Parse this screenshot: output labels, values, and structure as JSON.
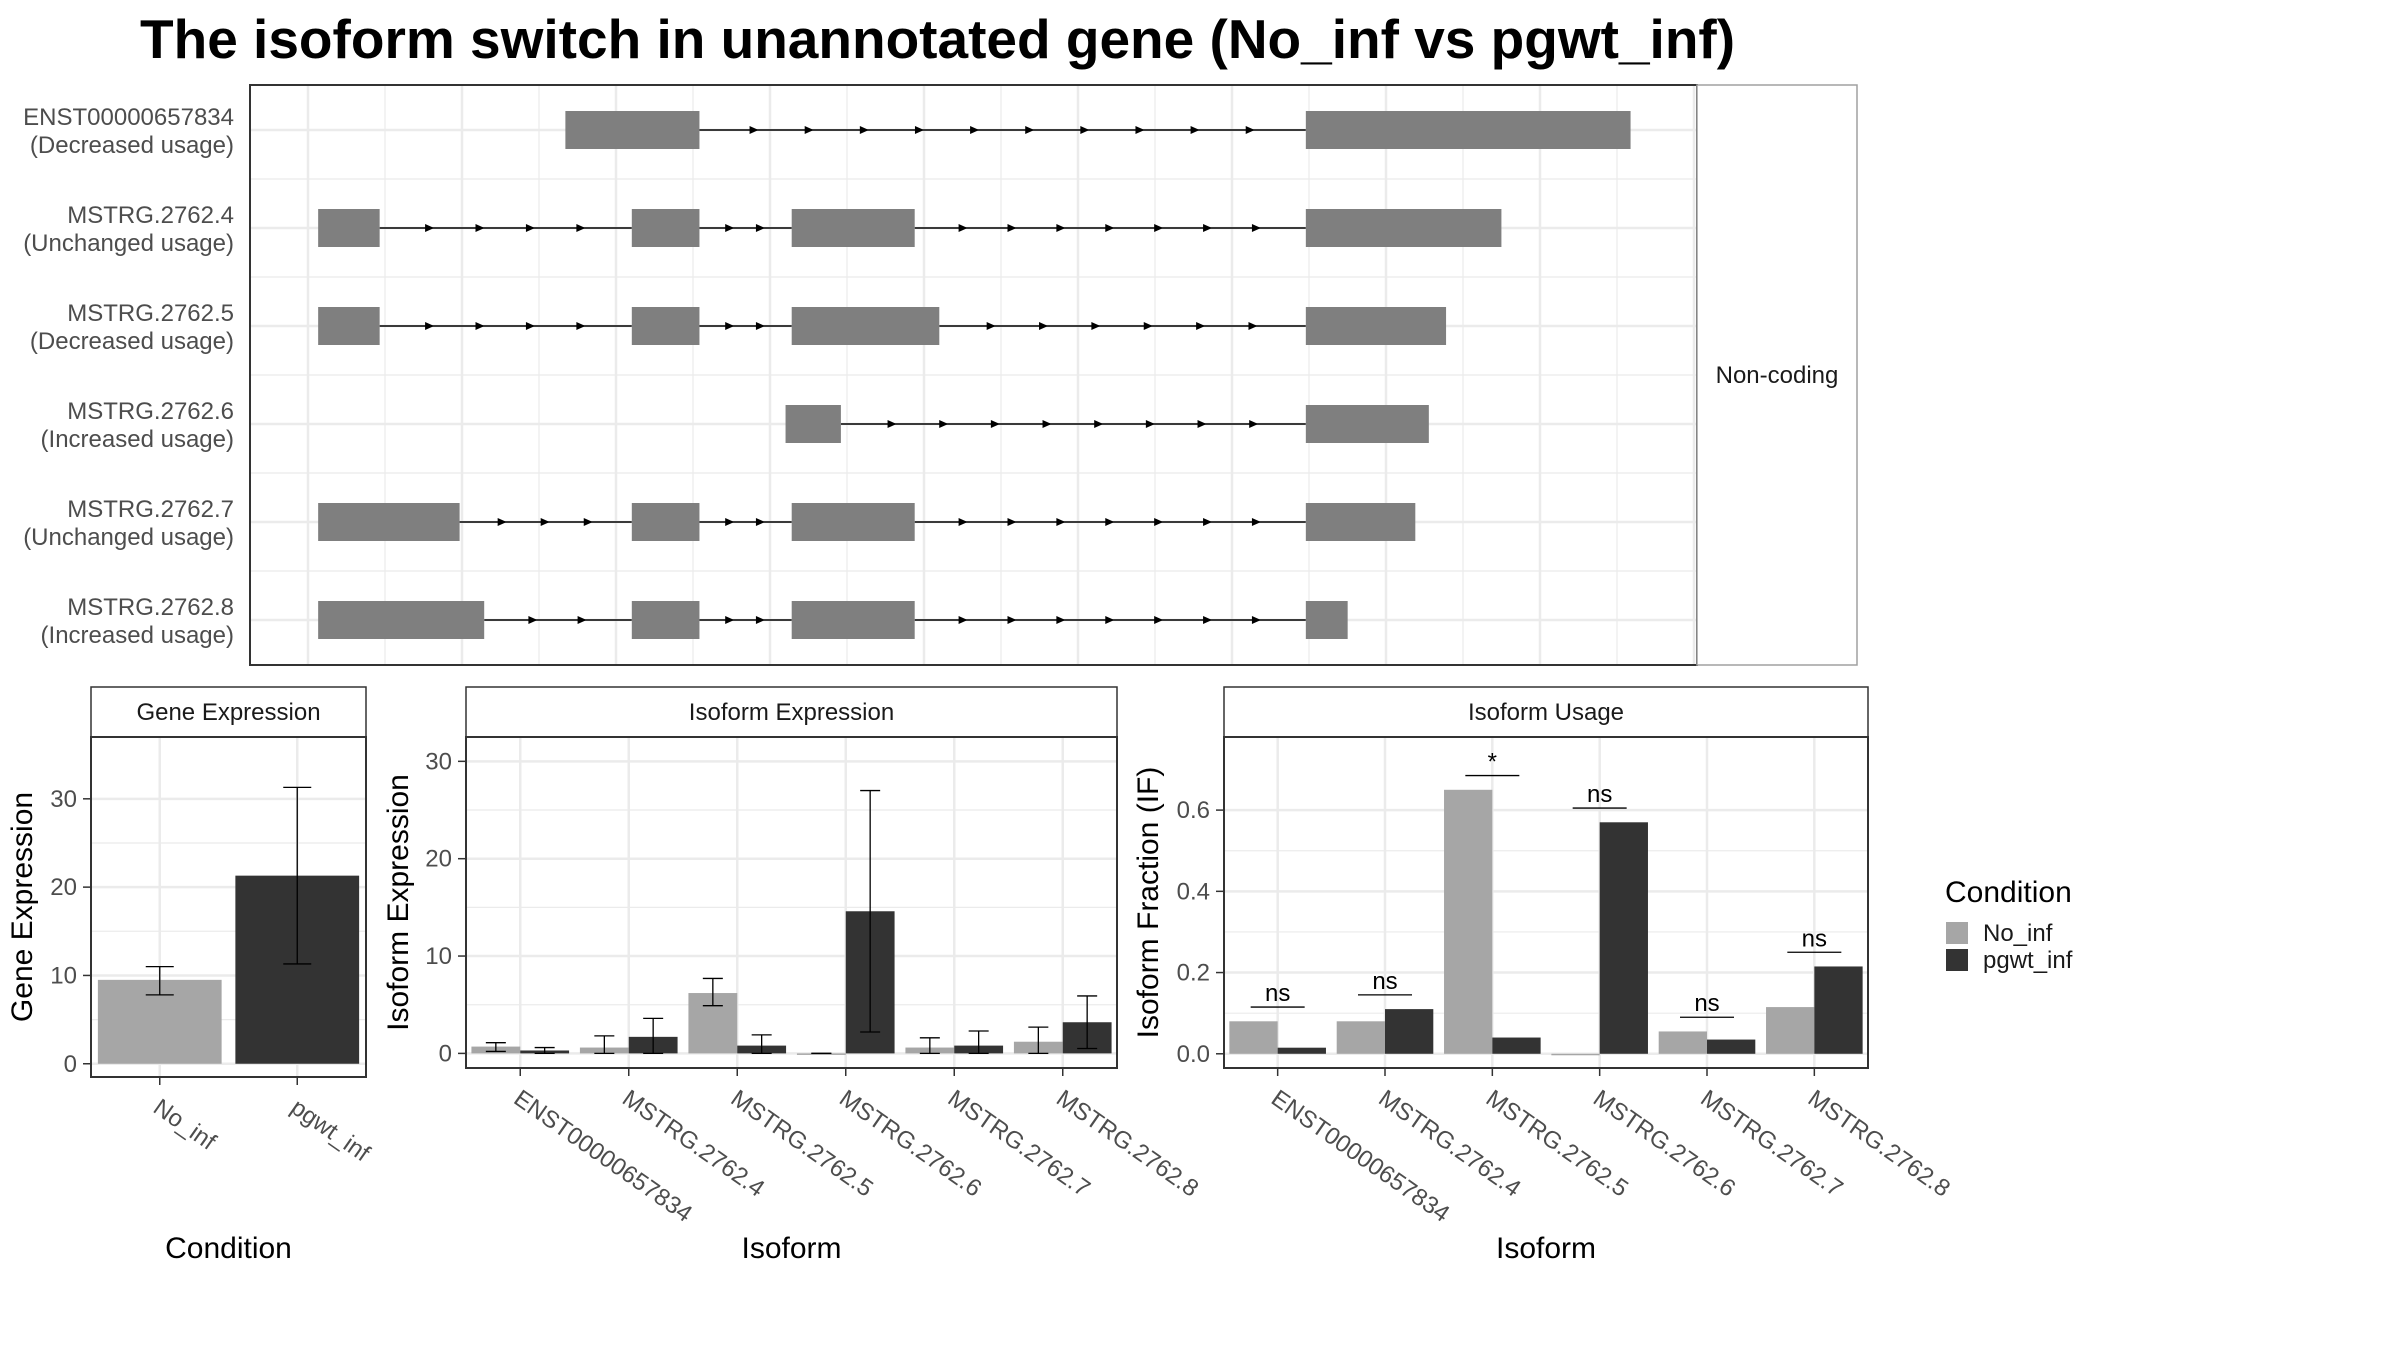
{
  "title": "The isoform switch in unannotated gene (No_inf vs pgwt_inf)",
  "colors": {
    "No_inf": "#a6a6a6",
    "pgwt_inf": "#333333",
    "exon": "#7f7f7f",
    "grid": "#ebebeb",
    "strip": "#ffffff",
    "panel_border": "#333333"
  },
  "chart_data": [
    {
      "type": "gene-structure",
      "panel_label": "Non-coding",
      "x_range": [
        0,
        100
      ],
      "isoforms": [
        {
          "name": "ENST00000657834",
          "usage": "(Decreased usage)",
          "exons": [
            [
              20.6,
              31.5
            ],
            [
              80.8,
              107.2
            ]
          ]
        },
        {
          "name": "MSTRG.2762.4",
          "usage": "(Unchanged usage)",
          "exons": [
            [
              0.5,
              5.5
            ],
            [
              26.0,
              31.5
            ],
            [
              39.0,
              49.0
            ],
            [
              80.8,
              96.7
            ]
          ]
        },
        {
          "name": "MSTRG.2762.5",
          "usage": "(Decreased usage)",
          "exons": [
            [
              0.5,
              5.5
            ],
            [
              26.0,
              31.5
            ],
            [
              39.0,
              51.0
            ],
            [
              80.8,
              92.2
            ]
          ]
        },
        {
          "name": "MSTRG.2762.6",
          "usage": "(Increased usage)",
          "exons": [
            [
              38.5,
              43.0
            ],
            [
              80.8,
              90.8
            ]
          ]
        },
        {
          "name": "MSTRG.2762.7",
          "usage": "(Unchanged usage)",
          "exons": [
            [
              0.5,
              12.0
            ],
            [
              26.0,
              31.5
            ],
            [
              39.0,
              49.0
            ],
            [
              80.8,
              89.7
            ]
          ]
        },
        {
          "name": "MSTRG.2762.8",
          "usage": "(Increased usage)",
          "exons": [
            [
              0.5,
              14.0
            ],
            [
              26.0,
              31.5
            ],
            [
              39.0,
              49.0
            ],
            [
              80.8,
              84.2
            ]
          ]
        }
      ]
    },
    {
      "type": "bar",
      "strip_title": "Gene Expression",
      "xlabel": "Condition",
      "ylabel": "Gene Expression",
      "ylim": [
        -1.5,
        37
      ],
      "yticks": [
        0,
        10,
        20,
        30
      ],
      "categories": [
        "No_inf",
        "pgwt_inf"
      ],
      "values": [
        9.5,
        21.3
      ],
      "error_bars": [
        [
          7.8,
          11.0
        ],
        [
          11.3,
          31.3
        ]
      ]
    },
    {
      "type": "bar",
      "strip_title": "Isoform Expression",
      "xlabel": "Isoform",
      "ylabel": "Isoform Expression",
      "ylim": [
        -1.5,
        32.5
      ],
      "yticks": [
        0,
        10,
        20,
        30
      ],
      "categories": [
        "ENST00000657834",
        "MSTRG.2762.4",
        "MSTRG.2762.5",
        "MSTRG.2762.6",
        "MSTRG.2762.7",
        "MSTRG.2762.8"
      ],
      "series": [
        {
          "name": "No_inf",
          "values": [
            0.7,
            0.6,
            6.2,
            0.0,
            0.6,
            1.2
          ],
          "errors": [
            [
              0.2,
              1.1
            ],
            [
              0.0,
              1.8
            ],
            [
              4.9,
              7.7
            ],
            [
              0.0,
              0.0
            ],
            [
              0.0,
              1.6
            ],
            [
              0.0,
              2.7
            ]
          ]
        },
        {
          "name": "pgwt_inf",
          "values": [
            0.3,
            1.7,
            0.8,
            14.6,
            0.8,
            3.2
          ],
          "errors": [
            [
              0.0,
              0.6
            ],
            [
              0.0,
              3.6
            ],
            [
              0.0,
              1.9
            ],
            [
              2.2,
              27.0
            ],
            [
              0.0,
              2.3
            ],
            [
              0.5,
              5.9
            ]
          ]
        }
      ]
    },
    {
      "type": "bar",
      "strip_title": "Isoform Usage",
      "xlabel": "Isoform",
      "ylabel": "Isoform Fraction (IF)",
      "ylim": [
        -0.035,
        0.78
      ],
      "yticks": [
        "0.0",
        "0.2",
        "0.4",
        "0.6"
      ],
      "categories": [
        "ENST00000657834",
        "MSTRG.2762.4",
        "MSTRG.2762.5",
        "MSTRG.2762.6",
        "MSTRG.2762.7",
        "MSTRG.2762.8"
      ],
      "series": [
        {
          "name": "No_inf",
          "values": [
            0.08,
            0.08,
            0.65,
            0.0,
            0.055,
            0.115
          ]
        },
        {
          "name": "pgwt_inf",
          "values": [
            0.015,
            0.11,
            0.04,
            0.57,
            0.035,
            0.215
          ]
        }
      ],
      "significance": [
        {
          "label": "ns",
          "y": 0.115
        },
        {
          "label": "ns",
          "y": 0.145
        },
        {
          "label": "*",
          "y": 0.685
        },
        {
          "label": "ns",
          "y": 0.605
        },
        {
          "label": "ns",
          "y": 0.09
        },
        {
          "label": "ns",
          "y": 0.25
        }
      ]
    }
  ],
  "legend": {
    "title": "Condition",
    "items": [
      "No_inf",
      "pgwt_inf"
    ]
  }
}
